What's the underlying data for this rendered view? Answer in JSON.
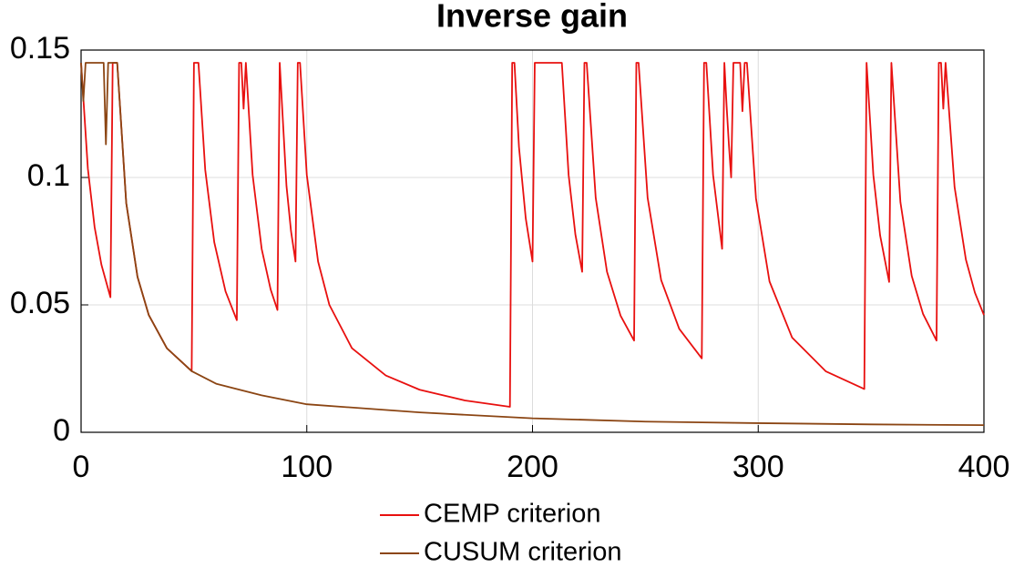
{
  "chart_data": {
    "type": "line",
    "title": "Inverse gain",
    "xlim": [
      0,
      400
    ],
    "xticks": [
      0,
      100,
      200,
      300,
      400
    ],
    "ylim": [
      0,
      0.15
    ],
    "yticks": [
      0,
      0.05,
      0.1,
      0.15
    ],
    "grid": true,
    "legend": "bottom",
    "series": [
      {
        "name": "CEMP criterion",
        "color": "#e8100f",
        "x": [
          0,
          3,
          6,
          9,
          13,
          14,
          16,
          20,
          25,
          30,
          38,
          49,
          50,
          52,
          55,
          59,
          64,
          69,
          70,
          71,
          72,
          73,
          76,
          80,
          84,
          87,
          88,
          91,
          93,
          95,
          96,
          97,
          100,
          105,
          110,
          120,
          135,
          150,
          170,
          190,
          191,
          192,
          194,
          197,
          200,
          201,
          213,
          216,
          219,
          222,
          223,
          224,
          228,
          233,
          239,
          245,
          246,
          247,
          251,
          257,
          265,
          275,
          276,
          277,
          280,
          284,
          285,
          286,
          287,
          288,
          289,
          292,
          293,
          294,
          295,
          299,
          305,
          315,
          330,
          347,
          348,
          351,
          354,
          358,
          359,
          363,
          368,
          373,
          379,
          380,
          381,
          382,
          383,
          387,
          392,
          396,
          400
        ],
        "values": [
          0.145,
          0.1035,
          0.0805,
          0.0658,
          0.053,
          0.145,
          0.145,
          0.09,
          0.061,
          0.046,
          0.033,
          0.024,
          0.145,
          0.145,
          0.103,
          0.0746,
          0.0553,
          0.044,
          0.145,
          0.145,
          0.127,
          0.145,
          0.101,
          0.072,
          0.056,
          0.048,
          0.145,
          0.0967,
          0.079,
          0.067,
          0.145,
          0.145,
          0.101,
          0.067,
          0.05,
          0.033,
          0.0223,
          0.0167,
          0.0125,
          0.01,
          0.145,
          0.145,
          0.112,
          0.084,
          0.067,
          0.145,
          0.145,
          0.101,
          0.0776,
          0.063,
          0.145,
          0.145,
          0.092,
          0.063,
          0.0458,
          0.036,
          0.145,
          0.145,
          0.092,
          0.0597,
          0.0406,
          0.029,
          0.145,
          0.145,
          0.101,
          0.072,
          0.145,
          0.128,
          0.113,
          0.1,
          0.145,
          0.145,
          0.126,
          0.145,
          0.145,
          0.0918,
          0.0592,
          0.0372,
          0.0239,
          0.017,
          0.145,
          0.101,
          0.0773,
          0.059,
          0.145,
          0.0903,
          0.0614,
          0.0465,
          0.036,
          0.145,
          0.145,
          0.127,
          0.145,
          0.0962,
          0.0678,
          0.0548,
          0.046
        ]
      },
      {
        "name": "CUSUM criterion",
        "color": "#8b4513",
        "x": [
          0,
          1,
          2,
          10,
          11,
          12,
          16,
          20,
          25,
          30,
          38,
          49,
          60,
          80,
          100,
          150,
          200,
          250,
          300,
          350,
          400
        ],
        "values": [
          0.145,
          0.13,
          0.145,
          0.145,
          0.113,
          0.145,
          0.145,
          0.09,
          0.061,
          0.046,
          0.033,
          0.024,
          0.019,
          0.0145,
          0.011,
          0.0078,
          0.0055,
          0.0042,
          0.0036,
          0.0031,
          0.0028
        ]
      }
    ]
  }
}
